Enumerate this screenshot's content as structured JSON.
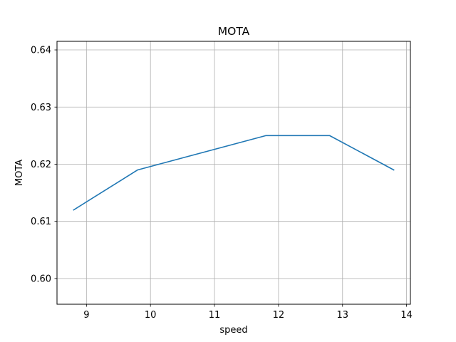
{
  "chart_data": {
    "type": "line",
    "title": "MOTA",
    "xlabel": "speed",
    "ylabel": "MOTA",
    "xlim": [
      8.54,
      14.06
    ],
    "ylim": [
      0.5955,
      0.6415
    ],
    "xticks": [
      9,
      10,
      11,
      12,
      13,
      14
    ],
    "yticks": [
      0.6,
      0.61,
      0.62,
      0.63,
      0.64
    ],
    "xtick_labels": [
      "9",
      "10",
      "11",
      "12",
      "13",
      "14"
    ],
    "ytick_labels": [
      "0.60",
      "0.61",
      "0.62",
      "0.63",
      "0.64"
    ],
    "grid": true,
    "series": [
      {
        "color": "#1f77b4",
        "x": [
          8.8,
          9.8,
          11.8,
          12.8,
          13.8
        ],
        "y": [
          0.612,
          0.619,
          0.625,
          0.625,
          0.619
        ]
      }
    ]
  }
}
